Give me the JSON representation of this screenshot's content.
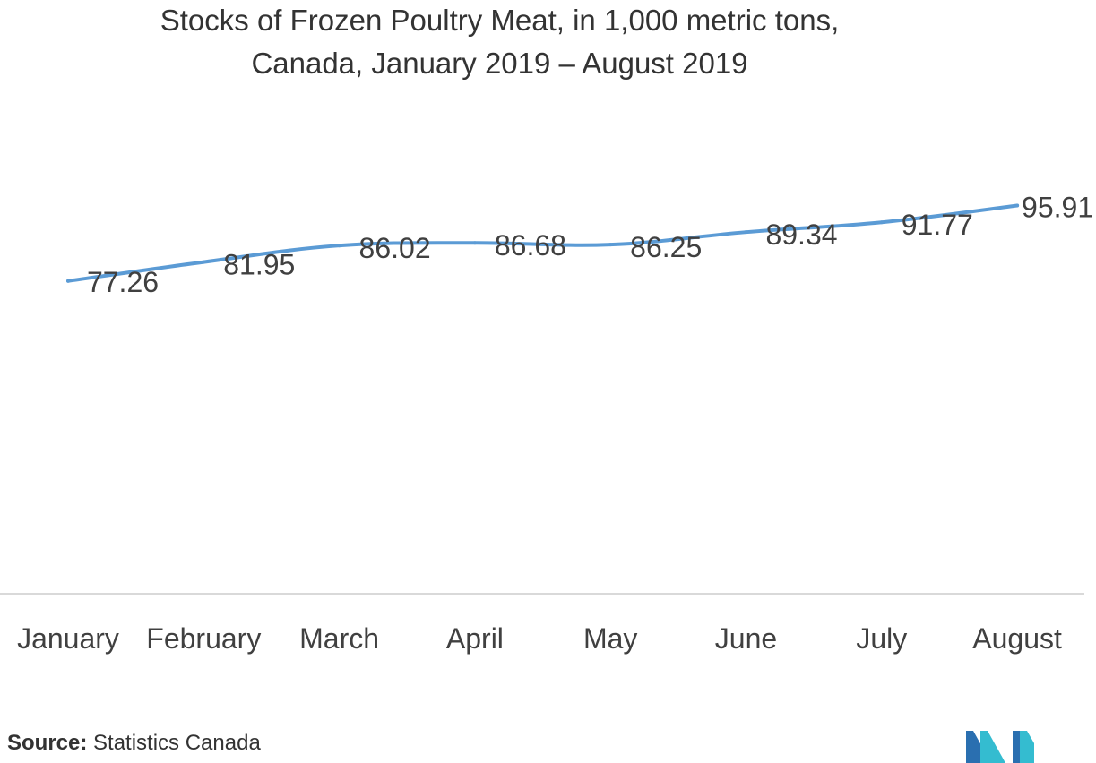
{
  "chart_data": {
    "type": "line",
    "title_lines": [
      "Stocks of Frozen Poultry Meat, in  1,000 metric tons,",
      "Canada, January 2019 – August 2019"
    ],
    "categories": [
      "January",
      "February",
      "March",
      "April",
      "May",
      "June",
      "July",
      "August"
    ],
    "series": [
      {
        "values": [
          77.26,
          81.95,
          86.02,
          86.68,
          86.25,
          89.34,
          91.77,
          95.91
        ],
        "color": "#5b9bd5"
      }
    ],
    "data_labels": [
      "77.26",
      "81.95",
      "86.02",
      "86.68",
      "86.25",
      "89.34",
      "91.77",
      "95.91"
    ],
    "ylim": [
      0,
      120
    ],
    "grid": false,
    "legend": "none",
    "axis_color": "#d9d9d9"
  },
  "footer": {
    "source_key": "Source:",
    "source_value": " Statistics Canada"
  },
  "logo": {
    "icon": "mordor-intelligence-logo-icon",
    "colors": [
      "#2a6fb0",
      "#34bcd0"
    ]
  }
}
